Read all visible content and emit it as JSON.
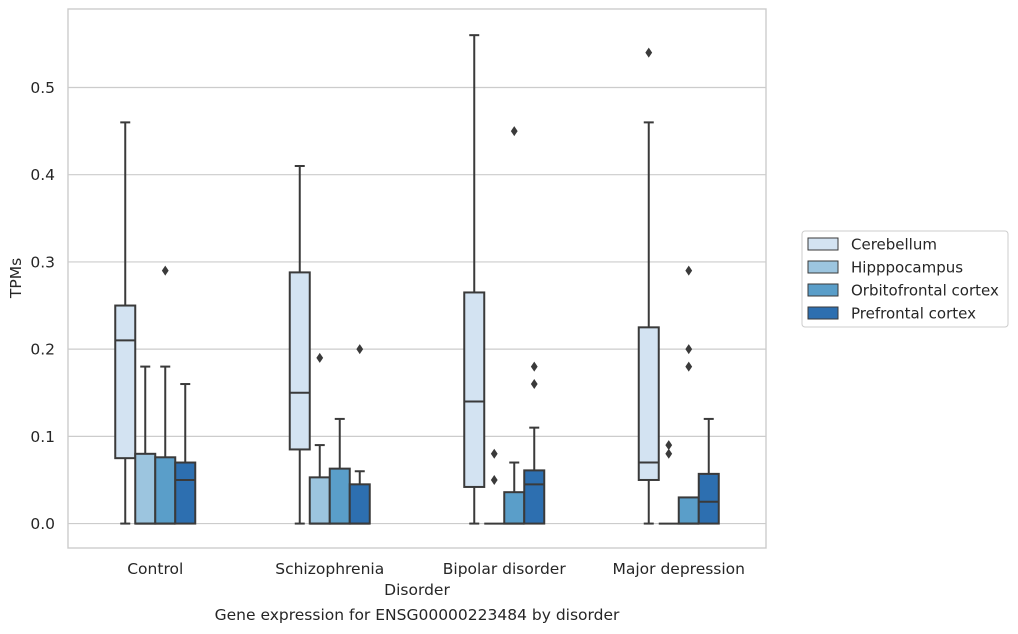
{
  "caption": "Gene expression for ENSG00000223484 by disorder",
  "chart_data": {
    "type": "box",
    "xlabel": "Disorder",
    "ylabel": "TPMs",
    "ylim": [
      -0.028,
      0.59
    ],
    "yticks": [
      0.0,
      0.1,
      0.2,
      0.3,
      0.4,
      0.5
    ],
    "ytick_labels": [
      "0.0",
      "0.1",
      "0.2",
      "0.3",
      "0.4",
      "0.5"
    ],
    "grid": "horizontal",
    "legend_position": "right",
    "categories": [
      "Control",
      "Schizophrenia",
      "Bipolar disorder",
      "Major depression"
    ],
    "series": [
      {
        "name": "Cerebellum",
        "color": "#d3e3f2",
        "boxes": [
          {
            "whislo": 0.0,
            "q1": 0.075,
            "med": 0.21,
            "q3": 0.25,
            "whishi": 0.46,
            "fliers": []
          },
          {
            "whislo": 0.0,
            "q1": 0.085,
            "med": 0.15,
            "q3": 0.288,
            "whishi": 0.41,
            "fliers": []
          },
          {
            "whislo": 0.0,
            "q1": 0.042,
            "med": 0.14,
            "q3": 0.265,
            "whishi": 0.56,
            "fliers": []
          },
          {
            "whislo": 0.0,
            "q1": 0.05,
            "med": 0.07,
            "q3": 0.225,
            "whishi": 0.46,
            "fliers": [
              0.54
            ]
          }
        ]
      },
      {
        "name": "Hipppocampus",
        "color": "#9cc5df",
        "boxes": [
          {
            "whislo": 0.0,
            "q1": 0.0,
            "med": 0.0,
            "q3": 0.08,
            "whishi": 0.18,
            "fliers": []
          },
          {
            "whislo": 0.0,
            "q1": 0.0,
            "med": 0.0,
            "q3": 0.053,
            "whishi": 0.09,
            "fliers": [
              0.19
            ]
          },
          {
            "whislo": 0.0,
            "q1": 0.0,
            "med": 0.0,
            "q3": 0.0,
            "whishi": 0.0,
            "fliers": [
              0.05,
              0.08
            ]
          },
          {
            "whislo": 0.0,
            "q1": 0.0,
            "med": 0.0,
            "q3": 0.0,
            "whishi": 0.0,
            "fliers": [
              0.08,
              0.09
            ]
          }
        ]
      },
      {
        "name": "Orbitofrontal cortex",
        "color": "#5a9ec9",
        "boxes": [
          {
            "whislo": 0.0,
            "q1": 0.0,
            "med": 0.0,
            "q3": 0.076,
            "whishi": 0.18,
            "fliers": [
              0.29
            ]
          },
          {
            "whislo": 0.0,
            "q1": 0.0,
            "med": 0.0,
            "q3": 0.063,
            "whishi": 0.12,
            "fliers": []
          },
          {
            "whislo": 0.0,
            "q1": 0.0,
            "med": 0.0,
            "q3": 0.036,
            "whishi": 0.07,
            "fliers": [
              0.45
            ]
          },
          {
            "whislo": 0.0,
            "q1": 0.0,
            "med": 0.0,
            "q3": 0.03,
            "whishi": 0.03,
            "fliers": [
              0.18,
              0.2,
              0.29
            ]
          }
        ]
      },
      {
        "name": "Prefrontal cortex",
        "color": "#2d6fb0",
        "boxes": [
          {
            "whislo": 0.0,
            "q1": 0.0,
            "med": 0.05,
            "q3": 0.07,
            "whishi": 0.16,
            "fliers": []
          },
          {
            "whislo": 0.0,
            "q1": 0.0,
            "med": 0.0,
            "q3": 0.045,
            "whishi": 0.06,
            "fliers": [
              0.2
            ]
          },
          {
            "whislo": 0.0,
            "q1": 0.0,
            "med": 0.045,
            "q3": 0.061,
            "whishi": 0.11,
            "fliers": [
              0.16,
              0.18
            ]
          },
          {
            "whislo": 0.0,
            "q1": 0.0,
            "med": 0.025,
            "q3": 0.057,
            "whishi": 0.12,
            "fliers": []
          }
        ]
      }
    ]
  }
}
